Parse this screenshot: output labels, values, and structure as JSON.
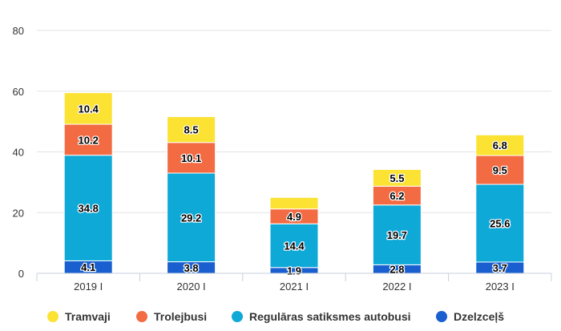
{
  "chart_data": {
    "type": "bar",
    "stacked": true,
    "categories": [
      "2019 I",
      "2020 I",
      "2021 I",
      "2022 I",
      "2023 I"
    ],
    "series": [
      {
        "name": "Dzelzceļš",
        "color": "#1a5fcf",
        "values": [
          4.1,
          3.8,
          1.9,
          2.8,
          3.7
        ]
      },
      {
        "name": "Regulāras satiksmes autobusi",
        "color": "#0fa9d8",
        "values": [
          34.8,
          29.2,
          14.4,
          19.7,
          25.6
        ]
      },
      {
        "name": "Trolejbusi",
        "color": "#f36b43",
        "values": [
          10.2,
          10.1,
          4.9,
          6.2,
          9.5
        ]
      },
      {
        "name": "Tramvaji",
        "color": "#fbe233",
        "values": [
          10.4,
          8.5,
          3.8,
          5.5,
          6.8
        ]
      }
    ],
    "data_labels_shown": [
      [
        true,
        true,
        true,
        true,
        true
      ],
      [
        true,
        true,
        true,
        true,
        true
      ],
      [
        true,
        true,
        true,
        true,
        true
      ],
      [
        true,
        true,
        false,
        true,
        true
      ]
    ],
    "legend_order": [
      "Tramvaji",
      "Trolejbusi",
      "Regulāras satiksmes autobusi",
      "Dzelzceļš"
    ],
    "legend_position": "bottom",
    "ylim": [
      0,
      80
    ],
    "yticks": [
      0,
      20,
      40,
      60,
      80
    ],
    "grid": true,
    "title": "",
    "xlabel": "",
    "ylabel": ""
  }
}
